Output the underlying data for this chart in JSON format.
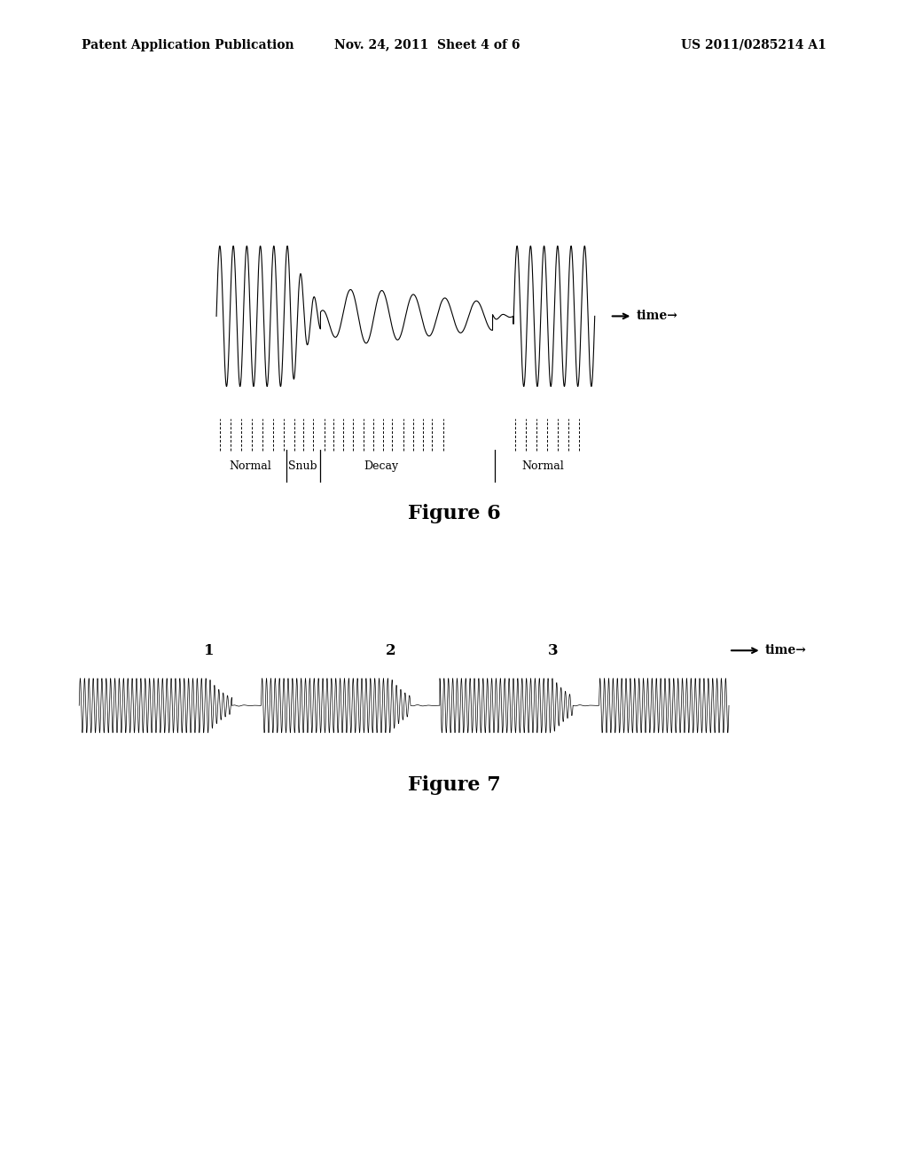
{
  "background_color": "#ffffff",
  "header_left": "Patent Application Publication",
  "header_mid": "Nov. 24, 2011  Sheet 4 of 6",
  "header_right": "US 2011/0285214 A1",
  "fig6_title": "Figure 6",
  "fig7_title": "Figure 7",
  "fig6_labels": [
    "Normal",
    "Snub",
    "Decay",
    "Normal"
  ],
  "fig7_labels": [
    "1",
    "2",
    "3"
  ],
  "time_label": "time→"
}
